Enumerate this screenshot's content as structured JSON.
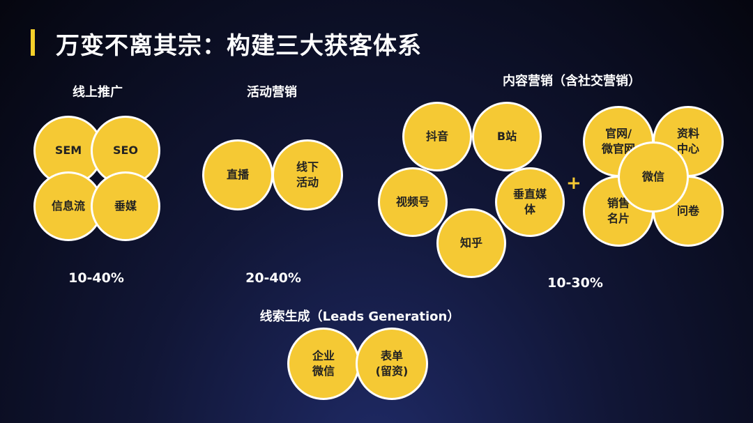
{
  "title": "万变不离其宗：构建三大获客体系",
  "sections": {
    "online": {
      "label": "线上推广",
      "percent": "10-40%",
      "items": [
        "SEM",
        "SEO",
        "信息流",
        "垂媒"
      ]
    },
    "events": {
      "label": "活动营销",
      "percent": "20-40%",
      "items": [
        "直播",
        "线下\n活动"
      ]
    },
    "content": {
      "label": "内容营销（含社交营销）",
      "percent": "10-30%",
      "items": [
        "抖音",
        "B站",
        "视频号",
        "垂直媒\n体",
        "知乎"
      ],
      "social_items": [
        "官网/\n微官网",
        "资料\n中心",
        "销售\n名片",
        "问卷",
        "微信"
      ],
      "plus": "+"
    },
    "leads": {
      "label": "线索生成（Leads Generation）",
      "items": [
        "企业\n微信",
        "表单\n(留资)"
      ]
    }
  },
  "colors": {
    "circle": "#f5c934",
    "accent": "#f5d02a",
    "text_dark": "#222222"
  }
}
